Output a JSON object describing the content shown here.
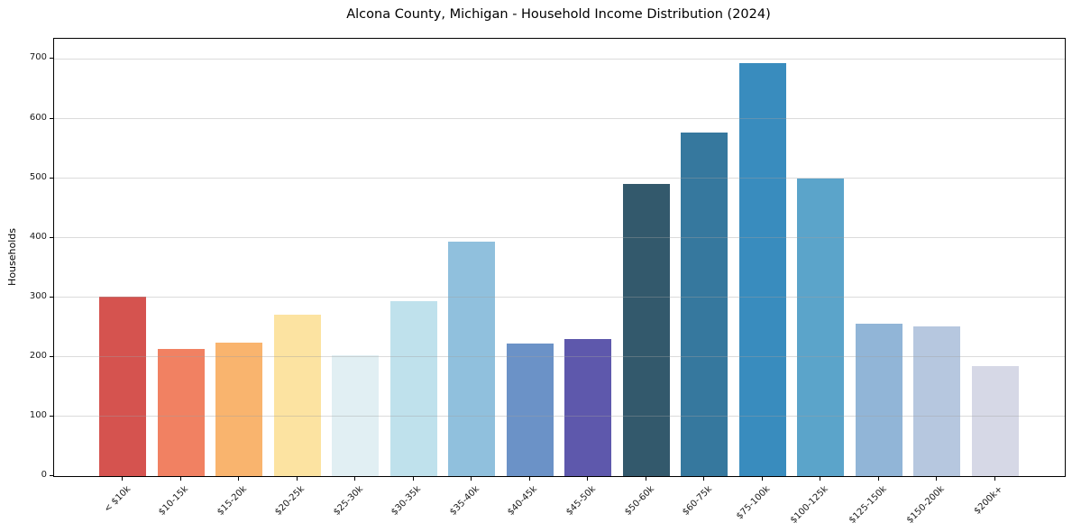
{
  "figure": {
    "title": "Alcona County, Michigan - Household Income Distribution (2024)"
  },
  "chart_data": {
    "type": "bar",
    "title": "Alcona County, Michigan - Household Income Distribution (2024)",
    "xlabel": "",
    "ylabel": "Households",
    "categories": [
      "< $10k",
      "$10-15k",
      "$15-20k",
      "$20-25k",
      "$25-30k",
      "$30-35k",
      "$35-40k",
      "$40-45k",
      "$45-50k",
      "$50-60k",
      "$60-75k",
      "$75-100k",
      "$100-125k",
      "$125-150k",
      "$150-200k",
      "$200k+"
    ],
    "values": [
      301,
      214,
      224,
      271,
      203,
      294,
      393,
      222,
      230,
      490,
      576,
      693,
      499,
      256,
      252,
      184
    ],
    "bar_colors": [
      "#d5534f",
      "#f18162",
      "#f9b46e",
      "#fce3a1",
      "#e1eff3",
      "#bfe1ec",
      "#90c0dd",
      "#6b92c7",
      "#5e58ac",
      "#33596c",
      "#36789e",
      "#398cbe",
      "#5ba4ca",
      "#91b5d7",
      "#b6c7df",
      "#d6d8e6"
    ],
    "ylim": [
      0,
      734
    ],
    "yticks": [
      0,
      100,
      200,
      300,
      400,
      500,
      600,
      700
    ],
    "grid": "horizontal",
    "legend": "none",
    "tick_label_rotation_deg": 45
  }
}
